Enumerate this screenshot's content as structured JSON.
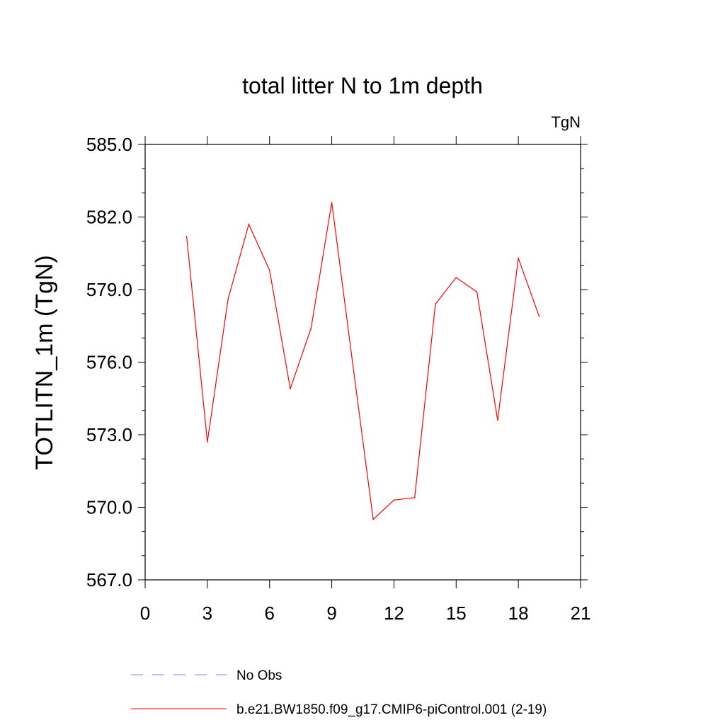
{
  "chart_data": {
    "type": "line",
    "title": "total litter N to 1m depth",
    "units": "TgN",
    "ylabel": "TOTLITN_1m  (TgN)",
    "xlabel": "",
    "xlim": [
      0,
      21
    ],
    "ylim": [
      567.0,
      585.0
    ],
    "xticks": [
      "0",
      "3",
      "6",
      "9",
      "12",
      "15",
      "18",
      "21"
    ],
    "yticks": [
      "567.0",
      "570.0",
      "573.0",
      "576.0",
      "579.0",
      "582.0",
      "585.0"
    ],
    "grid": false,
    "series": [
      {
        "name": "b.e21.BW1850.f09_g17.CMIP6-piControl.001 (2-19)",
        "color": "#ff0000",
        "style": "solid",
        "x": [
          2,
          3,
          4,
          5,
          6,
          7,
          8,
          9,
          10,
          11,
          12,
          13,
          14,
          15,
          16,
          17,
          18,
          19
        ],
        "y": [
          581.2,
          572.7,
          578.6,
          581.7,
          579.8,
          574.9,
          577.4,
          582.6,
          576.0,
          569.5,
          570.3,
          570.4,
          578.4,
          579.5,
          578.9,
          573.6,
          580.3,
          577.9
        ]
      }
    ],
    "legend": {
      "placement": "bottom-left",
      "entries": [
        {
          "label": "No Obs",
          "color": "#8080ff",
          "style": "dashed"
        },
        {
          "label": "b.e21.BW1850.f09_g17.CMIP6-piControl.001 (2-19)",
          "color": "#ff0000",
          "style": "solid"
        }
      ]
    }
  }
}
